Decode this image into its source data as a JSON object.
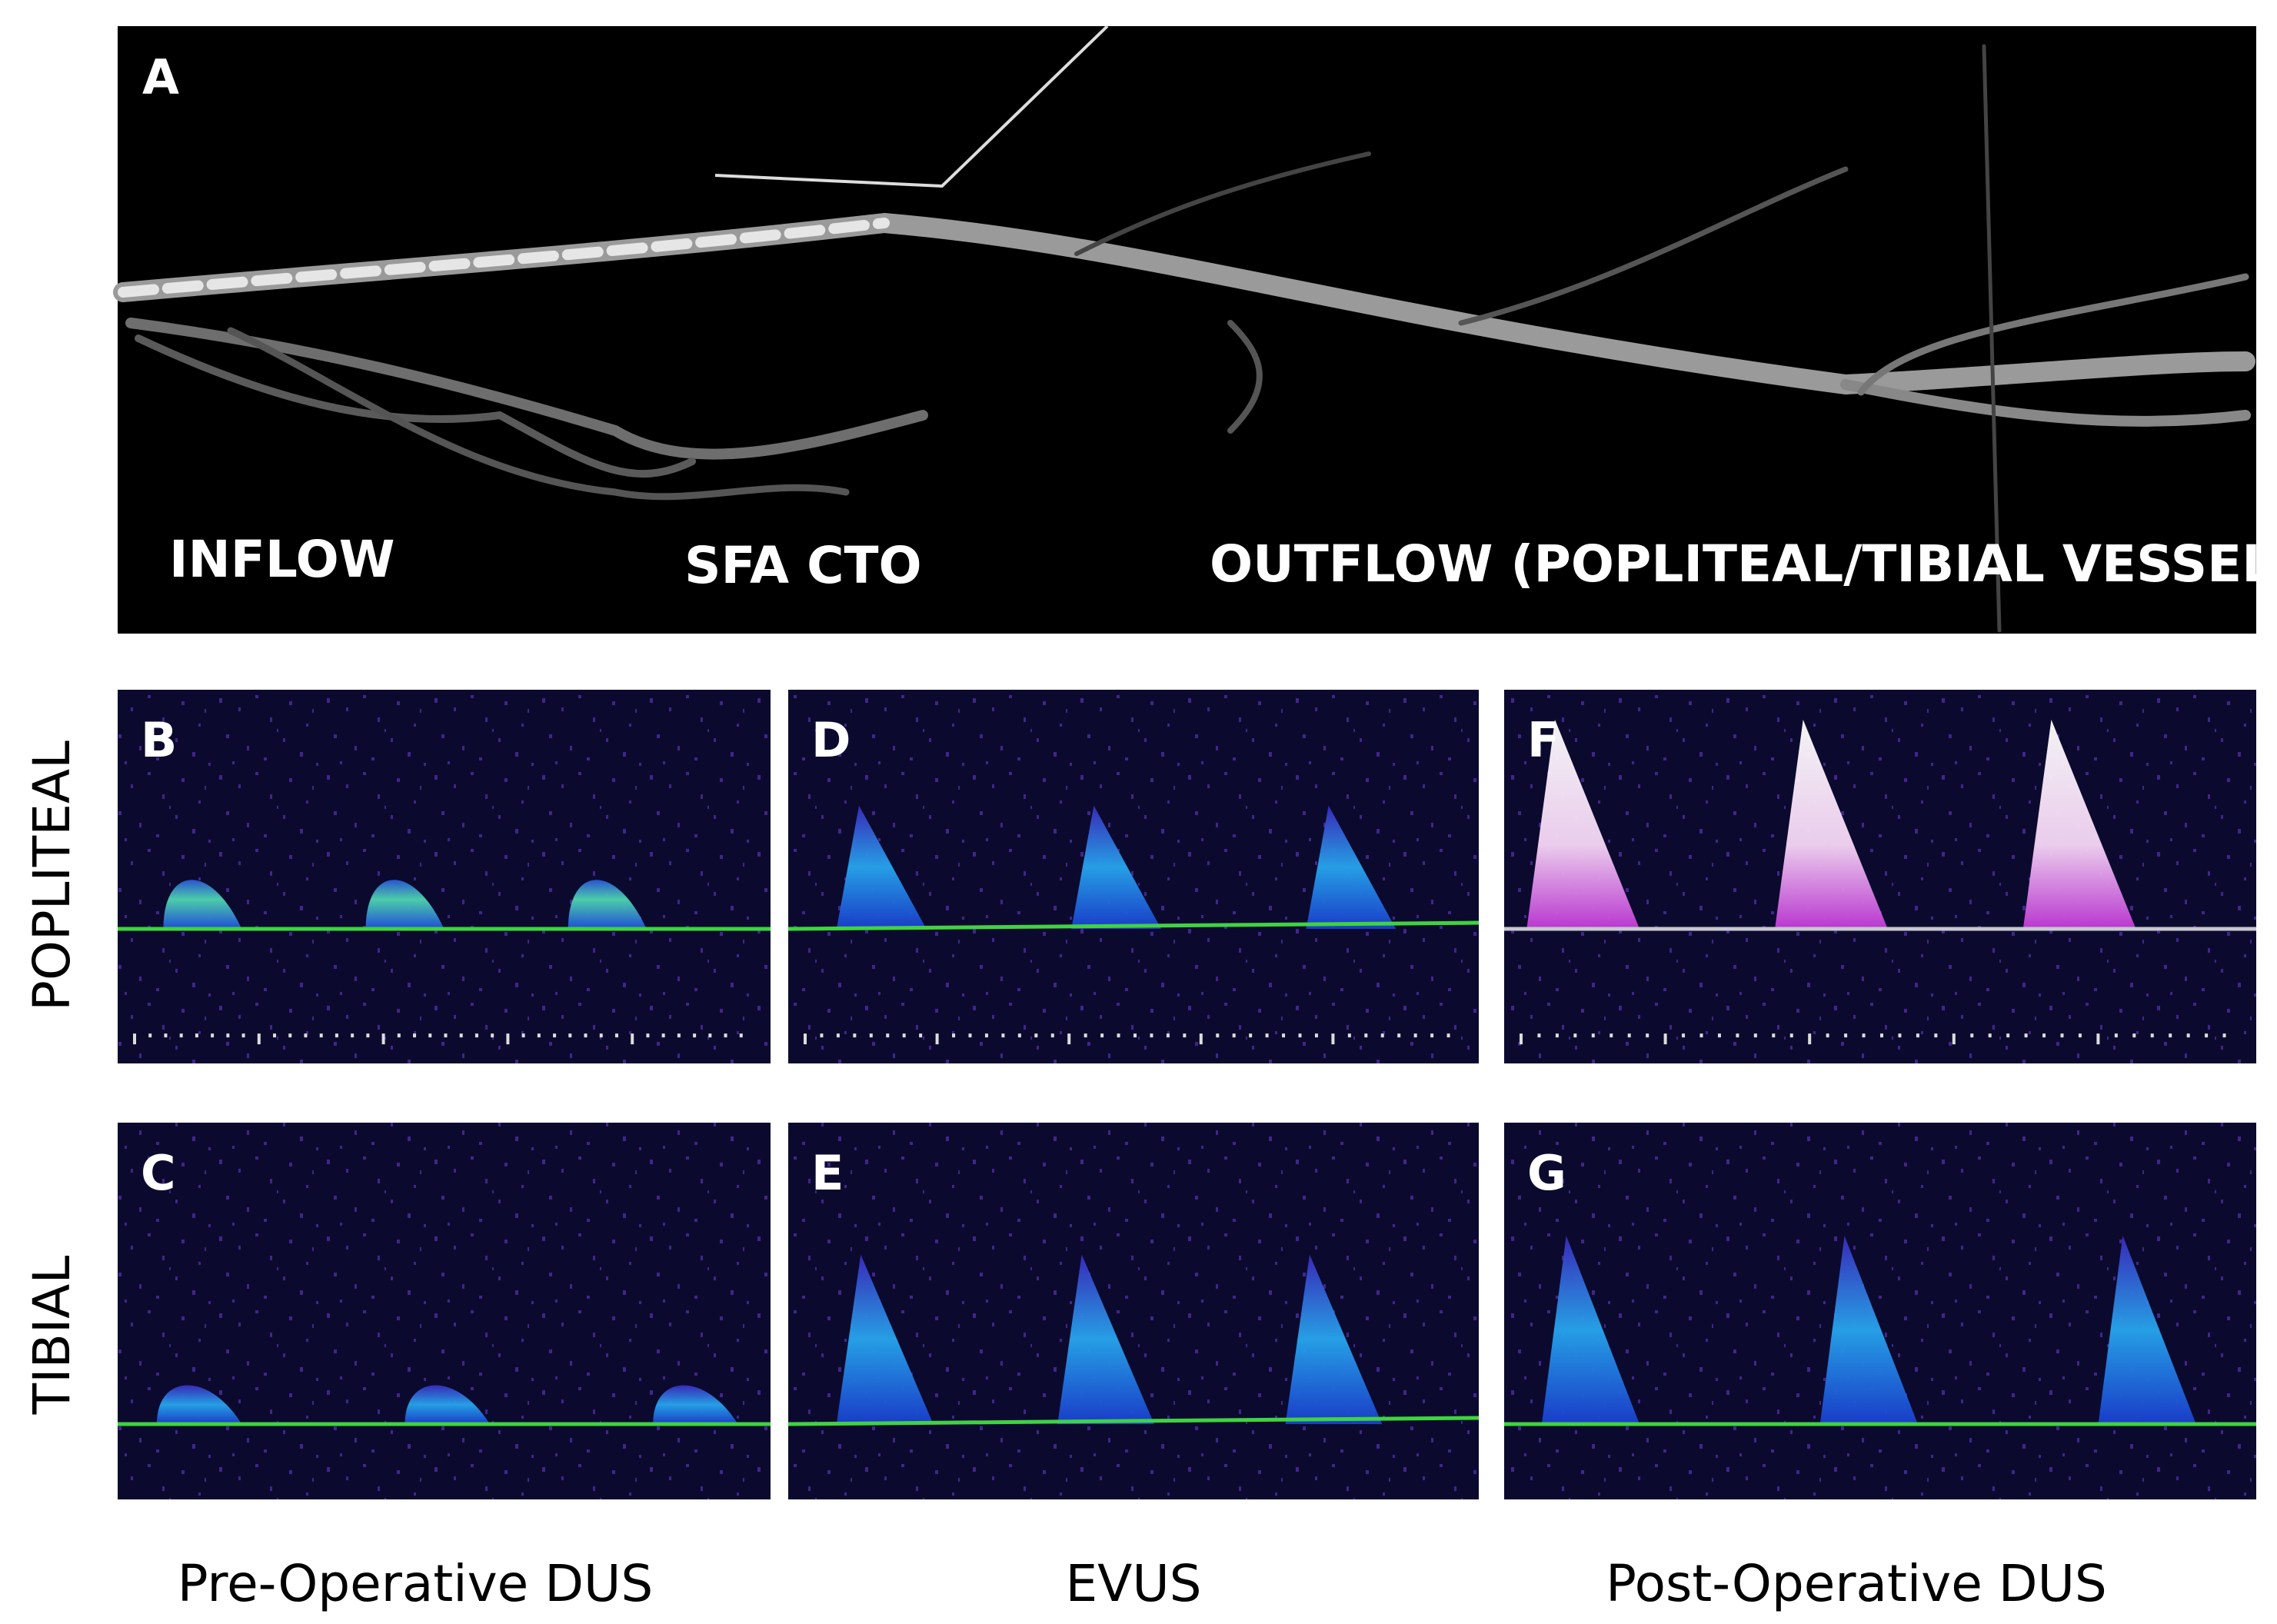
{
  "panel_a": {
    "label": "A",
    "annotations": [
      "INFLOW",
      "SFA CTO",
      "OUTFLOW (POPLITEAL/TIBIAL VESSELS)"
    ]
  },
  "row_labels": [
    "POPLITEAL",
    "TIBIAL"
  ],
  "column_labels": [
    "Pre-Operative DUS",
    "EVUS",
    "Post-Operative DUS"
  ],
  "grid": [
    [
      "B",
      "D",
      "F"
    ],
    [
      "C",
      "E",
      "G"
    ]
  ]
}
